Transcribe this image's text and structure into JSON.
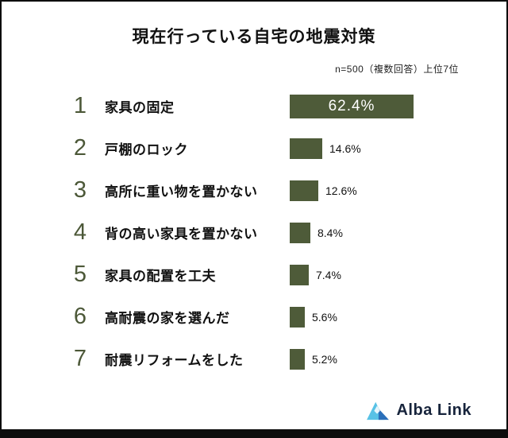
{
  "chart_data": {
    "type": "bar",
    "orientation": "horizontal",
    "title": "現在行っている自宅の地震対策",
    "note": "n=500（複数回答）上位7位",
    "ranks": [
      1,
      2,
      3,
      4,
      5,
      6,
      7
    ],
    "categories": [
      "家具の固定",
      "戸棚のロック",
      "高所に重い物を置かない",
      "背の高い家具を置かない",
      "家具の配置を工夫",
      "高耐震の家を選んだ",
      "耐震リフォームをした"
    ],
    "values": [
      62.4,
      14.6,
      12.6,
      8.4,
      7.4,
      5.6,
      5.2
    ],
    "value_labels": [
      "62.4%",
      "14.6%",
      "12.6%",
      "8.4%",
      "7.4%",
      "5.6%",
      "5.2%"
    ],
    "xlim": [
      0,
      70
    ],
    "grid": false,
    "legend": false,
    "bar_color": "#4e5b39",
    "first_label_position": "inside",
    "other_label_position": "right"
  },
  "footer": {
    "brand": "Alba Link",
    "logo_colors": {
      "light_blue": "#58c2e6",
      "dark_blue": "#2a6fba"
    }
  }
}
